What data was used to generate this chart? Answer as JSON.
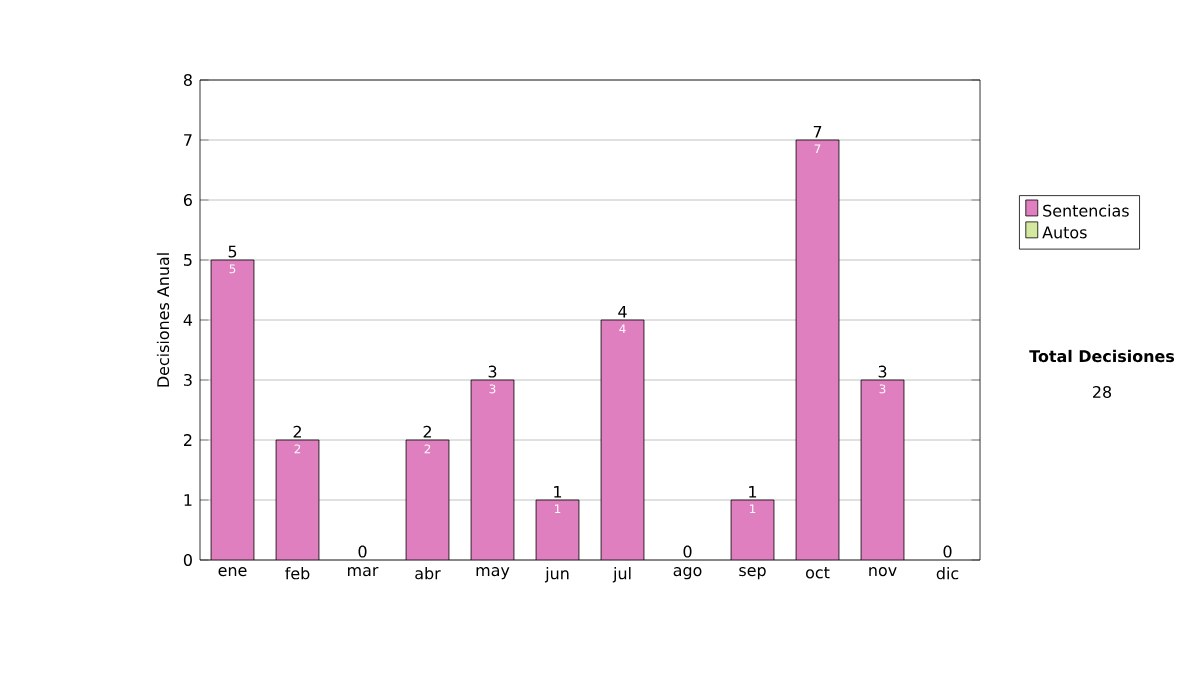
{
  "chart_data": {
    "type": "bar",
    "stacked": true,
    "ylabel": "Decisiones Anual",
    "categories": [
      "ene",
      "feb",
      "mar",
      "abr",
      "may",
      "jun",
      "jul",
      "ago",
      "sep",
      "oct",
      "nov",
      "dic"
    ],
    "series": [
      {
        "name": "Sentencias",
        "color": "#e07fbf",
        "values": [
          5,
          2,
          0,
          2,
          3,
          1,
          4,
          0,
          1,
          7,
          3,
          0
        ],
        "value_labels": [
          "5",
          "2",
          null,
          "2",
          "3",
          "1",
          "4",
          null,
          "1",
          "7",
          "3",
          null
        ]
      },
      {
        "name": "Autos",
        "color": "#d4e8a0",
        "values": [
          0,
          0,
          0,
          0,
          0,
          0,
          0,
          0,
          0,
          0,
          0,
          0
        ]
      }
    ],
    "totals": [
      "5",
      "2",
      "0",
      "2",
      "3",
      "1",
      "4",
      "0",
      "1",
      "7",
      "3",
      "0"
    ],
    "ylim": [
      0,
      8
    ],
    "yticks": [
      0,
      1,
      2,
      3,
      4,
      5,
      6,
      7,
      8
    ],
    "grid": "y",
    "legend": "right",
    "annotations": [
      "Total Decisiones",
      "28"
    ]
  }
}
